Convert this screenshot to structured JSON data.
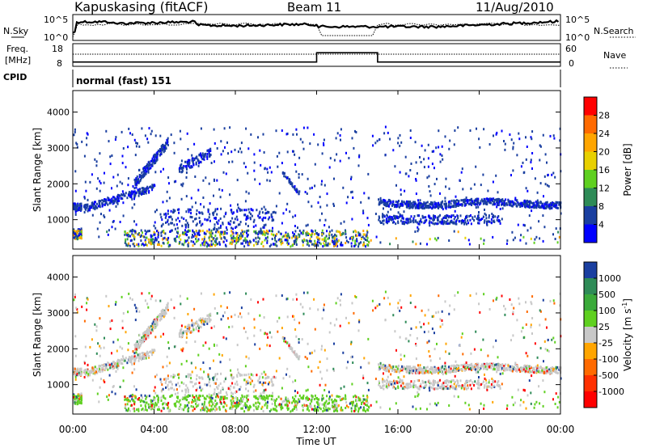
{
  "header": {
    "station": "Kapuskasing (fitACF)",
    "beam": "Beam 11",
    "date": "11/Aug/2010"
  },
  "panels": {
    "nsky_label": "N.Sky",
    "nsky_ticks": [
      "10^5",
      "10^0"
    ],
    "nsearch_label": "N.Search",
    "freq_label_1": "Freq.",
    "freq_label_2": "[MHz]",
    "freq_ticks": [
      "18",
      "8"
    ],
    "nave_label": "Nave",
    "nave_ticks": [
      "60",
      "0"
    ],
    "cpid_label": "CPID",
    "cpid_value": "normal (fast) 151"
  },
  "chart_data": [
    {
      "type": "heatmap",
      "name": "power",
      "ylabel": "Slant Range [km]",
      "yticks": [
        "4000",
        "3000",
        "2000",
        "1000"
      ],
      "yticks_values": [
        4000,
        3000,
        2000,
        1000
      ],
      "ylim": [
        180,
        4600
      ],
      "colorbar_label": "Power [dB]",
      "colorbar_ticks": [
        "28",
        "24",
        "20",
        "16",
        "12",
        "8",
        "4"
      ],
      "colorbar_colors": [
        "#ff0000",
        "#ff6a00",
        "#ffa500",
        "#e8d000",
        "#5fd020",
        "#2e8b57",
        "#1a3fa0",
        "#0000ff"
      ]
    },
    {
      "type": "heatmap",
      "name": "velocity",
      "ylabel": "Slant Range [km]",
      "yticks": [
        "4000",
        "3000",
        "2000",
        "1000"
      ],
      "yticks_values": [
        4000,
        3000,
        2000,
        1000
      ],
      "ylim": [
        180,
        4600
      ],
      "colorbar_label": "Velocity [m s",
      "colorbar_label_sup": "-1",
      "colorbar_label_end": "]",
      "colorbar_ticks": [
        "1000",
        "500",
        "100",
        "25",
        "-25",
        "-100",
        "-500",
        "-1000"
      ],
      "colorbar_colors": [
        "#1a3fa0",
        "#2e8b57",
        "#3aaa3a",
        "#5fd020",
        "#c8c8c8",
        "#ffa500",
        "#ff6a00",
        "#ff3000",
        "#ff0000"
      ]
    }
  ],
  "xaxis": {
    "label": "Time UT",
    "ticks": [
      "00:00",
      "04:00",
      "08:00",
      "12:00",
      "16:00",
      "20:00",
      "00:00"
    ],
    "range_hours": [
      0,
      24
    ]
  }
}
